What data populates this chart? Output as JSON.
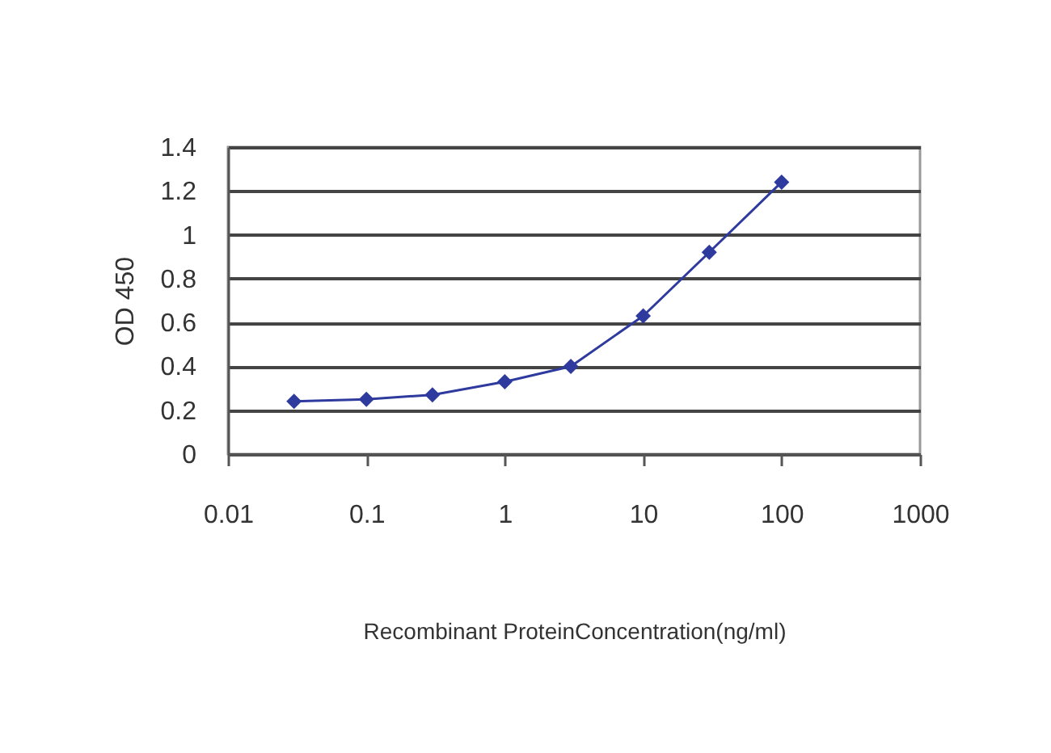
{
  "chart_data": {
    "type": "line",
    "xlabel": "Recombinant ProteinConcentration(ng/ml)",
    "ylabel": "OD 450",
    "x": [
      0.03,
      0.1,
      0.3,
      1,
      3,
      10,
      30,
      100
    ],
    "series": [
      {
        "color": "#2e3a9e",
        "values": [
          0.24,
          0.25,
          0.27,
          0.33,
          0.4,
          0.63,
          0.92,
          1.24
        ]
      }
    ],
    "log": "x",
    "xlim": [
      0.01,
      1000
    ],
    "xticks": [
      0.01,
      0.1,
      1,
      10,
      100,
      1000
    ],
    "ylim": [
      0,
      1.4
    ],
    "yticks": [
      0,
      0.2,
      0.4,
      0.6,
      0.8,
      1,
      1.2,
      1.4
    ],
    "grid": "y",
    "marker": "diamond",
    "line_style": "solid"
  }
}
